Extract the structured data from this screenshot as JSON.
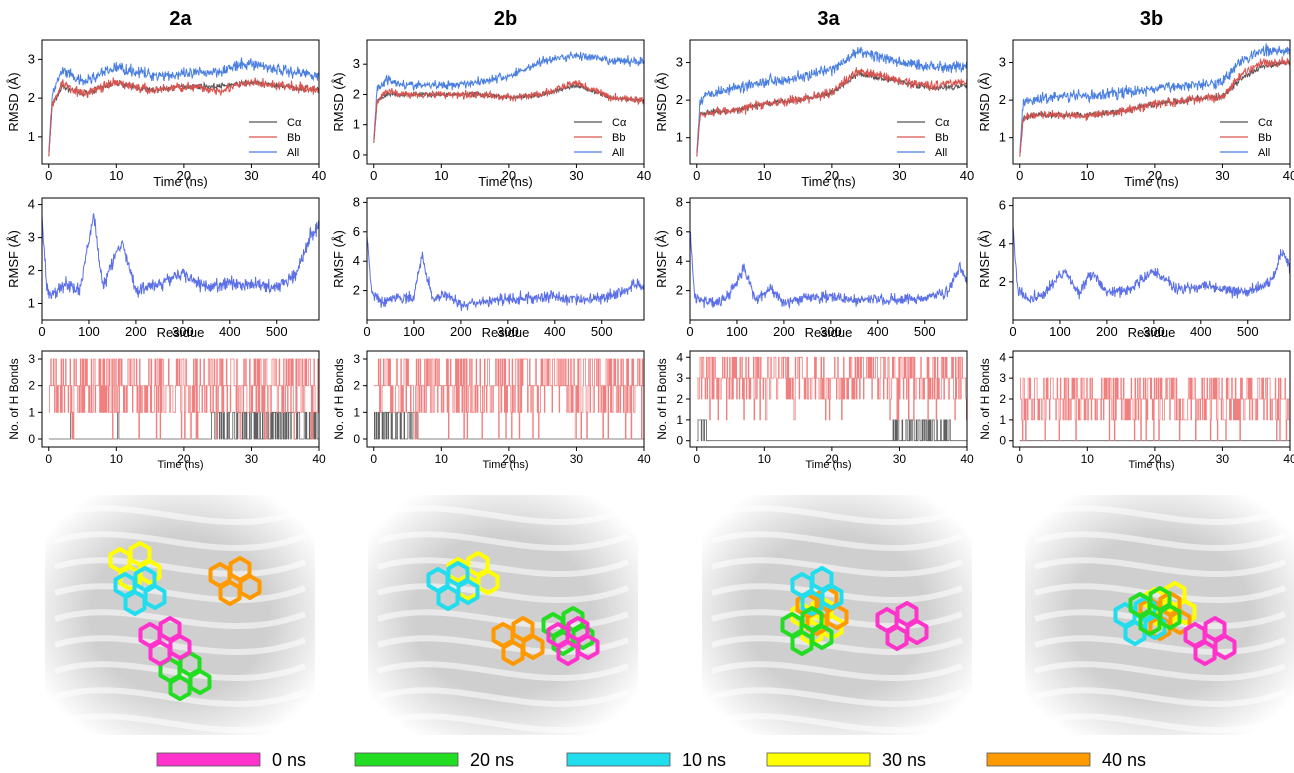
{
  "column_titles": [
    "2a",
    "2b",
    "3a",
    "3b"
  ],
  "colors": {
    "calpha": "#555555",
    "bb": "#d9534f",
    "all": "#4a7fe0",
    "rmsf": "#5b6fe6",
    "hb_red": "#f08080",
    "hb_gray": "#606060",
    "legend_0ns": "#ff33cc",
    "legend_20ns": "#22dd22",
    "legend_10ns": "#22ddee",
    "legend_30ns": "#ffff00",
    "legend_40ns": "#ff9900"
  },
  "legend_time": [
    {
      "label": "0 ns",
      "color_key": "legend_0ns"
    },
    {
      "label": "20 ns",
      "color_key": "legend_20ns"
    },
    {
      "label": "10 ns",
      "color_key": "legend_10ns"
    },
    {
      "label": "30 ns",
      "color_key": "legend_30ns"
    },
    {
      "label": "40 ns",
      "color_key": "legend_40ns"
    }
  ],
  "chart_data": [
    {
      "panel": "rmsd",
      "column": "2a",
      "type": "line",
      "xlabel": "Time (ns)",
      "ylabel": "RMSD (Å)",
      "xlim": [
        -1,
        40
      ],
      "ylim": [
        0.3,
        3.5
      ],
      "xticks": [
        0,
        10,
        20,
        30,
        40
      ],
      "yticks": [
        1,
        2,
        3
      ],
      "legend": [
        "Cα",
        "Bb",
        "All"
      ],
      "series": [
        {
          "name": "Cα",
          "x": [
            0,
            0.5,
            2,
            5,
            10,
            15,
            20,
            25,
            30,
            35,
            40
          ],
          "y": [
            0.5,
            1.8,
            2.3,
            2.1,
            2.4,
            2.2,
            2.3,
            2.3,
            2.4,
            2.3,
            2.2
          ]
        },
        {
          "name": "Bb",
          "x": [
            0,
            0.5,
            2,
            5,
            10,
            15,
            20,
            25,
            30,
            35,
            40
          ],
          "y": [
            0.5,
            1.8,
            2.4,
            2.1,
            2.4,
            2.2,
            2.3,
            2.2,
            2.4,
            2.3,
            2.2
          ]
        },
        {
          "name": "All",
          "x": [
            0,
            0.5,
            2,
            5,
            10,
            15,
            20,
            25,
            30,
            35,
            40
          ],
          "y": [
            0.6,
            2.1,
            2.7,
            2.4,
            2.8,
            2.6,
            2.6,
            2.7,
            2.9,
            2.7,
            2.6
          ]
        }
      ]
    },
    {
      "panel": "rmsd",
      "column": "2b",
      "type": "line",
      "xlabel": "Time (ns)",
      "ylabel": "RMSD (Å)",
      "xlim": [
        -1,
        40
      ],
      "ylim": [
        -0.3,
        3.8
      ],
      "xticks": [
        0,
        10,
        20,
        30,
        40
      ],
      "yticks": [
        0,
        1,
        2,
        3
      ],
      "legend": [
        "Cα",
        "Bb",
        "All"
      ],
      "series": [
        {
          "name": "Cα",
          "x": [
            0,
            0.5,
            2,
            5,
            10,
            15,
            20,
            25,
            30,
            35,
            40
          ],
          "y": [
            0.4,
            1.8,
            2.0,
            2.0,
            2.0,
            2.0,
            1.9,
            2.0,
            2.3,
            1.9,
            1.8
          ]
        },
        {
          "name": "Bb",
          "x": [
            0,
            0.5,
            2,
            5,
            10,
            15,
            20,
            25,
            30,
            35,
            40
          ],
          "y": [
            0.4,
            1.8,
            2.1,
            2.0,
            2.0,
            2.0,
            1.9,
            2.0,
            2.4,
            1.9,
            1.8
          ]
        },
        {
          "name": "All",
          "x": [
            0,
            0.5,
            2,
            5,
            10,
            15,
            20,
            25,
            30,
            35,
            40
          ],
          "y": [
            0.5,
            2.2,
            2.5,
            2.3,
            2.3,
            2.4,
            2.6,
            3.1,
            3.3,
            3.1,
            3.1
          ]
        }
      ]
    },
    {
      "panel": "rmsd",
      "column": "3a",
      "type": "line",
      "xlabel": "Time (ns)",
      "ylabel": "RMSD (Å)",
      "xlim": [
        -1,
        40
      ],
      "ylim": [
        0.3,
        3.6
      ],
      "xticks": [
        0,
        10,
        20,
        30,
        40
      ],
      "yticks": [
        1,
        2,
        3
      ],
      "legend": [
        "Cα",
        "Bb",
        "All"
      ],
      "series": [
        {
          "name": "Cα",
          "x": [
            0,
            0.5,
            2,
            5,
            10,
            15,
            20,
            24,
            30,
            35,
            40
          ],
          "y": [
            0.5,
            1.6,
            1.7,
            1.7,
            1.9,
            2.0,
            2.2,
            2.7,
            2.5,
            2.3,
            2.4
          ]
        },
        {
          "name": "Bb",
          "x": [
            0,
            0.5,
            2,
            5,
            10,
            15,
            20,
            24,
            30,
            35,
            40
          ],
          "y": [
            0.5,
            1.6,
            1.7,
            1.7,
            1.9,
            2.0,
            2.2,
            2.8,
            2.5,
            2.4,
            2.5
          ]
        },
        {
          "name": "All",
          "x": [
            0,
            0.5,
            2,
            5,
            10,
            15,
            20,
            24,
            30,
            35,
            40
          ],
          "y": [
            0.6,
            2.0,
            2.2,
            2.3,
            2.5,
            2.6,
            2.8,
            3.3,
            3.0,
            2.9,
            2.9
          ]
        }
      ]
    },
    {
      "panel": "rmsd",
      "column": "3b",
      "type": "line",
      "xlabel": "Time (ns)",
      "ylabel": "RMSD (Å)",
      "xlim": [
        -1,
        40
      ],
      "ylim": [
        0.3,
        3.6
      ],
      "xticks": [
        0,
        10,
        20,
        30,
        40
      ],
      "yticks": [
        1,
        2,
        3
      ],
      "legend": [
        "Cα",
        "Bb",
        "All"
      ],
      "series": [
        {
          "name": "Cα",
          "x": [
            0,
            0.5,
            2,
            5,
            10,
            15,
            20,
            25,
            30,
            33,
            36,
            40
          ],
          "y": [
            0.5,
            1.5,
            1.6,
            1.6,
            1.6,
            1.7,
            1.9,
            2.0,
            2.1,
            2.6,
            2.9,
            3.0
          ]
        },
        {
          "name": "Bb",
          "x": [
            0,
            0.5,
            2,
            5,
            10,
            15,
            20,
            25,
            30,
            33,
            36,
            40
          ],
          "y": [
            0.5,
            1.5,
            1.6,
            1.6,
            1.6,
            1.7,
            1.9,
            2.0,
            2.1,
            2.7,
            3.0,
            3.0
          ]
        },
        {
          "name": "All",
          "x": [
            0,
            0.5,
            2,
            5,
            10,
            15,
            20,
            25,
            30,
            33,
            36,
            40
          ],
          "y": [
            0.6,
            1.9,
            2.0,
            2.1,
            2.1,
            2.2,
            2.3,
            2.4,
            2.5,
            3.1,
            3.3,
            3.3
          ]
        }
      ]
    },
    {
      "panel": "rmsf",
      "column": "2a",
      "type": "line",
      "xlabel": "Residue",
      "ylabel": "RMSF (Å)",
      "xlim": [
        0,
        590
      ],
      "ylim": [
        0.5,
        4.2
      ],
      "xticks": [
        0,
        100,
        200,
        300,
        400,
        500
      ],
      "yticks": [
        1,
        2,
        3,
        4
      ],
      "series": [
        {
          "name": "",
          "x": [
            0,
            10,
            20,
            50,
            80,
            110,
            130,
            170,
            200,
            250,
            300,
            350,
            400,
            450,
            500,
            540,
            570,
            590
          ],
          "y": [
            3.6,
            1.5,
            1.2,
            1.6,
            1.4,
            3.7,
            1.5,
            2.9,
            1.4,
            1.6,
            1.9,
            1.5,
            1.6,
            1.6,
            1.5,
            1.9,
            3.0,
            3.4
          ]
        }
      ]
    },
    {
      "panel": "rmsf",
      "column": "2b",
      "type": "line",
      "xlabel": "Residue",
      "ylabel": "RMSF (Å)",
      "xlim": [
        0,
        590
      ],
      "ylim": [
        0,
        8.3
      ],
      "xticks": [
        0,
        100,
        200,
        300,
        400,
        500
      ],
      "yticks": [
        2,
        4,
        6,
        8
      ],
      "series": [
        {
          "name": "",
          "x": [
            0,
            10,
            30,
            60,
            100,
            117,
            140,
            170,
            200,
            250,
            300,
            350,
            400,
            450,
            500,
            550,
            570,
            590
          ],
          "y": [
            5.9,
            1.8,
            1.2,
            1.6,
            1.5,
            4.4,
            1.4,
            1.8,
            1.0,
            1.2,
            1.4,
            1.5,
            1.6,
            1.4,
            1.5,
            2.0,
            2.5,
            2.2
          ]
        }
      ]
    },
    {
      "panel": "rmsf",
      "column": "3a",
      "type": "line",
      "xlabel": "Residue",
      "ylabel": "RMSF (Å)",
      "xlim": [
        0,
        590
      ],
      "ylim": [
        0,
        8.3
      ],
      "xticks": [
        0,
        100,
        200,
        300,
        400,
        500
      ],
      "yticks": [
        2,
        4,
        6,
        8
      ],
      "series": [
        {
          "name": "",
          "x": [
            0,
            10,
            40,
            80,
            115,
            140,
            170,
            200,
            250,
            300,
            350,
            400,
            450,
            500,
            550,
            575,
            590
          ],
          "y": [
            6.1,
            1.5,
            1.2,
            1.5,
            3.5,
            1.4,
            2.1,
            1.2,
            1.5,
            1.6,
            1.3,
            1.4,
            1.4,
            1.5,
            2.0,
            3.6,
            2.6
          ]
        }
      ]
    },
    {
      "panel": "rmsf",
      "column": "3b",
      "type": "line",
      "xlabel": "Residue",
      "ylabel": "RMSF (Å)",
      "xlim": [
        0,
        590
      ],
      "ylim": [
        0,
        6.4
      ],
      "xticks": [
        0,
        100,
        200,
        300,
        400,
        500
      ],
      "yticks": [
        2,
        4,
        6
      ],
      "series": [
        {
          "name": "",
          "x": [
            0,
            10,
            40,
            70,
            110,
            140,
            170,
            200,
            250,
            300,
            350,
            400,
            450,
            500,
            550,
            575,
            590
          ],
          "y": [
            5.0,
            1.5,
            1.1,
            1.5,
            2.6,
            1.4,
            2.5,
            1.4,
            1.6,
            2.6,
            1.6,
            1.8,
            1.6,
            1.5,
            2.0,
            3.7,
            2.6
          ]
        }
      ]
    },
    {
      "panel": "hbonds",
      "column": "2a",
      "type": "line",
      "xlabel": "Time (ns)",
      "ylabel": "No. of H Bonds",
      "xlim": [
        -1,
        40
      ],
      "ylim": [
        -0.3,
        3.3
      ],
      "xticks": [
        0,
        10,
        20,
        30,
        40
      ],
      "yticks": [
        0,
        1,
        2,
        3
      ],
      "series": [
        {
          "name": "",
          "x": [
            0,
            40
          ],
          "y": [
            2,
            2
          ]
        }
      ]
    },
    {
      "panel": "hbonds",
      "column": "2b",
      "type": "line",
      "xlabel": "Time (ns)",
      "ylabel": "No. of H Bonds",
      "xlim": [
        -1,
        40
      ],
      "ylim": [
        -0.3,
        3.3
      ],
      "xticks": [
        0,
        10,
        20,
        30,
        40
      ],
      "yticks": [
        0,
        1,
        2,
        3
      ],
      "series": [
        {
          "name": "",
          "x": [
            0,
            40
          ],
          "y": [
            2,
            2
          ]
        }
      ]
    },
    {
      "panel": "hbonds",
      "column": "3a",
      "type": "line",
      "xlabel": "Time (ns)",
      "ylabel": "No. of H Bonds",
      "xlim": [
        -1,
        40
      ],
      "ylim": [
        -0.3,
        4.3
      ],
      "xticks": [
        0,
        10,
        20,
        30,
        40
      ],
      "yticks": [
        0,
        1,
        2,
        3,
        4
      ],
      "series": [
        {
          "name": "",
          "x": [
            0,
            40
          ],
          "y": [
            3,
            3
          ]
        }
      ]
    },
    {
      "panel": "hbonds",
      "column": "3b",
      "type": "line",
      "xlabel": "Time (ns)",
      "ylabel": "No. of H Bonds",
      "xlim": [
        -1,
        40
      ],
      "ylim": [
        -0.3,
        4.3
      ],
      "xticks": [
        0,
        10,
        20,
        30,
        40
      ],
      "yticks": [
        0,
        1,
        2,
        3,
        4
      ],
      "series": [
        {
          "name": "",
          "x": [
            0,
            40
          ],
          "y": [
            2,
            2
          ]
        }
      ]
    }
  ]
}
